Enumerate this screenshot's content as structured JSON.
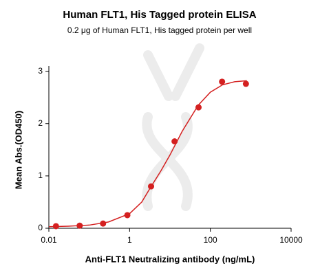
{
  "chart_data": {
    "type": "scatter",
    "title": "Human FLT1, His Tagged protein ELISA",
    "subtitle": "0.2 μg of Human FLT1, His tagged protein per well",
    "x_label": "Anti-FLT1 Neutralizing antibody (ng/mL)",
    "y_label": "Mean Abs.(OD450)",
    "xscale": "log",
    "xlim": [
      0.01,
      10000
    ],
    "xticks": [
      0.01,
      1,
      100,
      10000
    ],
    "ylim": [
      0,
      3.1
    ],
    "yticks": [
      0,
      1,
      2,
      3
    ],
    "points": {
      "color": "#d42020",
      "x": [
        0.015,
        0.058,
        0.22,
        0.88,
        3.4,
        13,
        51,
        195,
        760
      ],
      "values": [
        0.04,
        0.05,
        0.09,
        0.25,
        0.8,
        1.66,
        2.31,
        2.8,
        2.76
      ]
    },
    "curve": {
      "color": "#d42020",
      "x": [
        0.01,
        0.03,
        0.1,
        0.3,
        1,
        2,
        3.3,
        6,
        10,
        20,
        50,
        100,
        200,
        400,
        800
      ],
      "values": [
        0.03,
        0.04,
        0.06,
        0.12,
        0.28,
        0.5,
        0.78,
        1.1,
        1.4,
        1.85,
        2.35,
        2.6,
        2.74,
        2.8,
        2.82
      ]
    }
  }
}
